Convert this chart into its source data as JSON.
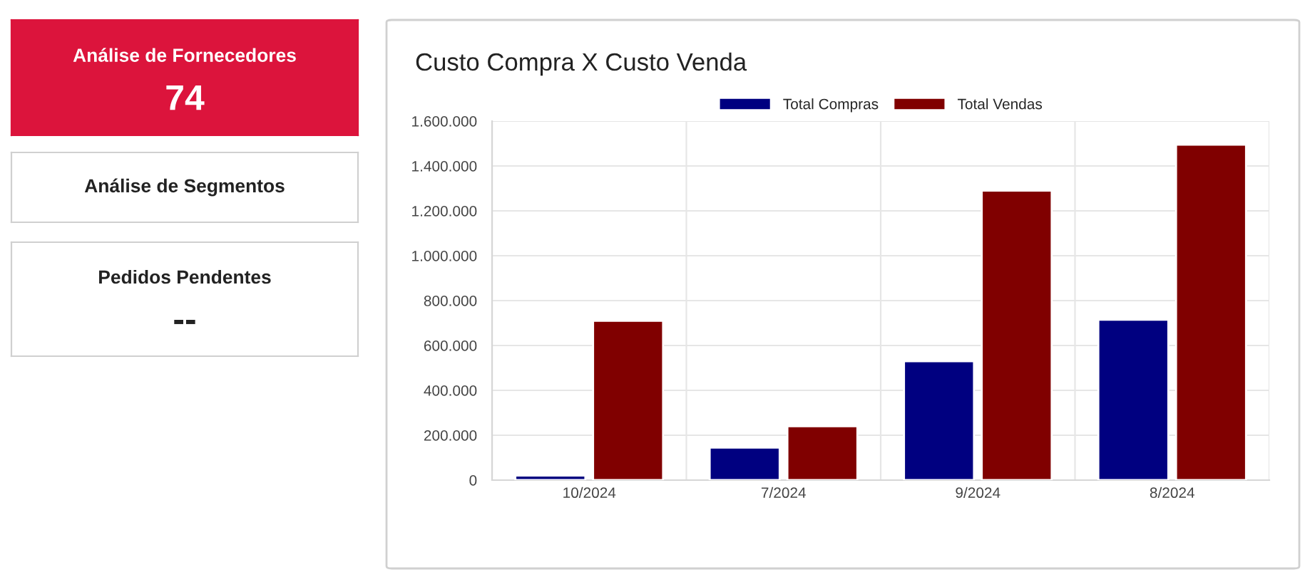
{
  "chart_data": [
    {
      "type": "other",
      "title": "Análise de Fornecedores",
      "annotations": [
        "74"
      ],
      "color": "#dc143c"
    },
    {
      "type": "other",
      "title": "Análise de Segmentos"
    },
    {
      "type": "other",
      "title": "Pedidos Pendentes",
      "annotations": [
        "--"
      ]
    },
    {
      "type": "bar",
      "title": "Custo Compra X Custo Venda",
      "categories": [
        "10/2024",
        "7/2024",
        "9/2024",
        "8/2024"
      ],
      "series": [
        {
          "name": "Total Compras",
          "color": "#000080",
          "values": [
            20000,
            145000,
            530000,
            715000
          ]
        },
        {
          "name": "Total Vendas",
          "color": "#800000",
          "values": [
            710000,
            240000,
            1290000,
            1495000
          ]
        }
      ],
      "ylim": [
        0,
        1600000
      ],
      "yticks": [
        0,
        {
          "value": 200000,
          "label": "200.000"
        },
        {
          "value": 400000,
          "label": "400.000"
        },
        {
          "value": 600000,
          "label": "600.000"
        },
        {
          "value": 800000,
          "label": "800.000"
        },
        {
          "value": 1000000,
          "label": "1.000.000"
        },
        {
          "value": 1200000,
          "label": "1.200.000"
        },
        {
          "value": 1400000,
          "label": "1.400.000"
        },
        {
          "value": 1600000,
          "label": "1.600.000"
        }
      ],
      "grid": true,
      "legend": "top"
    }
  ]
}
